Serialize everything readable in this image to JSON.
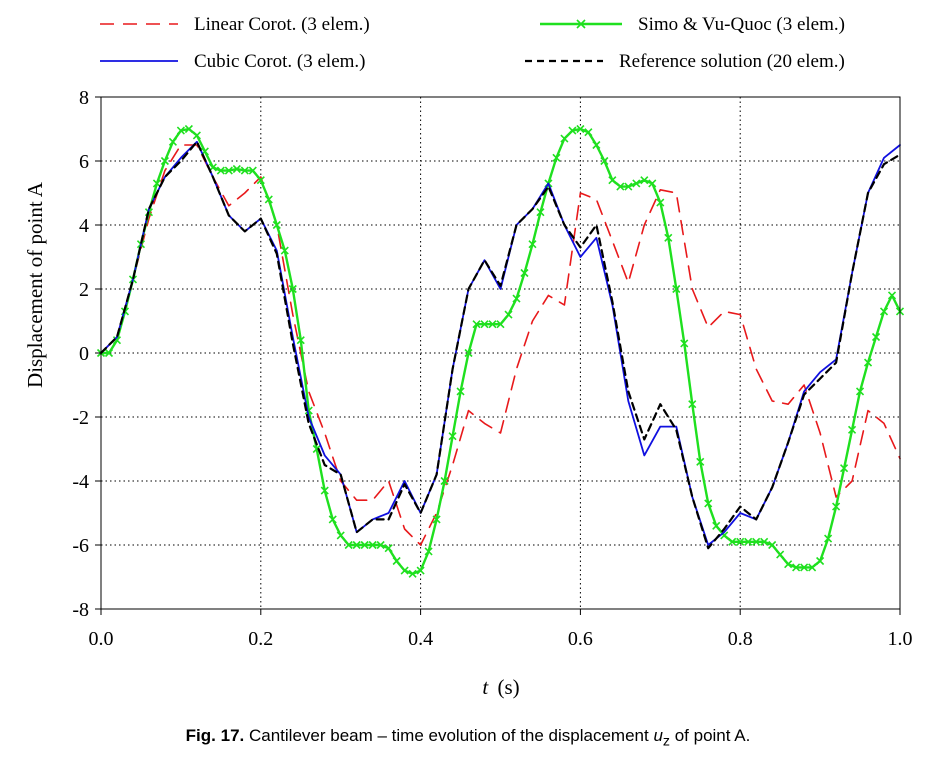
{
  "chart_data": {
    "type": "line",
    "xlabel_var": "t",
    "xlabel_unit": "(s)",
    "ylabel": "Displacement of point A",
    "xlim": [
      0,
      1
    ],
    "ylim": [
      -8,
      8
    ],
    "xticks": [
      "0.0",
      "0.2",
      "0.4",
      "0.6",
      "0.8",
      "1.0"
    ],
    "yticks": [
      "8",
      "6",
      "4",
      "2",
      "0",
      "-2",
      "-4",
      "-6",
      "-8"
    ],
    "grid": true,
    "legend_position": "top",
    "series": [
      {
        "name": "Linear Corot. (3 elem.)",
        "color": "#e8191b",
        "dash": "dashed",
        "marker": "none",
        "x": [
          0,
          0.02,
          0.04,
          0.06,
          0.08,
          0.1,
          0.12,
          0.14,
          0.16,
          0.18,
          0.2,
          0.22,
          0.24,
          0.26,
          0.28,
          0.3,
          0.32,
          0.34,
          0.36,
          0.38,
          0.4,
          0.42,
          0.44,
          0.46,
          0.48,
          0.5,
          0.52,
          0.54,
          0.56,
          0.58,
          0.6,
          0.62,
          0.64,
          0.66,
          0.68,
          0.7,
          0.72,
          0.74,
          0.76,
          0.78,
          0.8,
          0.82,
          0.84,
          0.86,
          0.88,
          0.9,
          0.92,
          0.94,
          0.96,
          0.98,
          1.0
        ],
        "y": [
          0,
          0.5,
          2.3,
          4.2,
          5.7,
          6.5,
          6.5,
          5.5,
          4.6,
          5.0,
          5.5,
          4.0,
          1.2,
          -1.2,
          -2.5,
          -4.0,
          -4.6,
          -4.6,
          -4.0,
          -5.5,
          -6.0,
          -5.0,
          -3.5,
          -1.8,
          -2.2,
          -2.5,
          -0.5,
          1.0,
          1.8,
          1.5,
          5.0,
          4.8,
          3.5,
          2.2,
          4.0,
          5.1,
          5.0,
          2.0,
          0.8,
          1.3,
          1.2,
          -0.5,
          -1.5,
          -1.6,
          -1.0,
          -2.5,
          -4.5,
          -4.0,
          -1.8,
          -2.2,
          -3.3
        ]
      },
      {
        "name": "Simo & Vu-Quoc (3 elem.)",
        "color": "#1fe01f",
        "dash": "solid",
        "marker": "x",
        "x": [
          0,
          0.01,
          0.02,
          0.03,
          0.04,
          0.05,
          0.06,
          0.07,
          0.08,
          0.09,
          0.1,
          0.11,
          0.12,
          0.13,
          0.14,
          0.15,
          0.16,
          0.17,
          0.18,
          0.19,
          0.2,
          0.21,
          0.22,
          0.23,
          0.24,
          0.25,
          0.26,
          0.27,
          0.28,
          0.29,
          0.3,
          0.31,
          0.32,
          0.33,
          0.34,
          0.35,
          0.36,
          0.37,
          0.38,
          0.39,
          0.4,
          0.41,
          0.42,
          0.43,
          0.44,
          0.45,
          0.46,
          0.47,
          0.48,
          0.49,
          0.5,
          0.51,
          0.52,
          0.53,
          0.54,
          0.55,
          0.56,
          0.57,
          0.58,
          0.59,
          0.6,
          0.61,
          0.62,
          0.63,
          0.64,
          0.65,
          0.66,
          0.67,
          0.68,
          0.69,
          0.7,
          0.71,
          0.72,
          0.73,
          0.74,
          0.75,
          0.76,
          0.77,
          0.78,
          0.79,
          0.8,
          0.81,
          0.82,
          0.83,
          0.84,
          0.85,
          0.86,
          0.87,
          0.88,
          0.89,
          0.9,
          0.91,
          0.92,
          0.93,
          0.94,
          0.95,
          0.96,
          0.97,
          0.98,
          0.99,
          1.0
        ],
        "y": [
          0,
          0.0,
          0.4,
          1.3,
          2.3,
          3.4,
          4.4,
          5.3,
          6.0,
          6.6,
          6.95,
          7.0,
          6.8,
          6.3,
          5.8,
          5.7,
          5.7,
          5.75,
          5.7,
          5.7,
          5.4,
          4.8,
          4.0,
          3.2,
          2.0,
          0.4,
          -1.8,
          -3.0,
          -4.3,
          -5.2,
          -5.7,
          -6.0,
          -6.0,
          -6.0,
          -6.0,
          -6.0,
          -6.1,
          -6.5,
          -6.8,
          -6.9,
          -6.8,
          -6.2,
          -5.2,
          -4.0,
          -2.6,
          -1.2,
          0.0,
          0.9,
          0.9,
          0.9,
          0.9,
          1.2,
          1.7,
          2.5,
          3.4,
          4.4,
          5.3,
          6.1,
          6.7,
          6.95,
          7.0,
          6.9,
          6.5,
          6.0,
          5.4,
          5.2,
          5.2,
          5.3,
          5.4,
          5.3,
          4.7,
          3.6,
          2.0,
          0.3,
          -1.6,
          -3.4,
          -4.7,
          -5.4,
          -5.7,
          -5.9,
          -5.9,
          -5.9,
          -5.9,
          -5.9,
          -6.0,
          -6.3,
          -6.6,
          -6.7,
          -6.7,
          -6.7,
          -6.5,
          -5.8,
          -4.8,
          -3.6,
          -2.4,
          -1.2,
          -0.3,
          0.5,
          1.3,
          1.8,
          1.3
        ]
      },
      {
        "name": "Cubic Corot. (3 elem.)",
        "color": "#1010e0",
        "dash": "solid",
        "marker": "none",
        "x": [
          0,
          0.02,
          0.04,
          0.06,
          0.08,
          0.1,
          0.12,
          0.14,
          0.16,
          0.18,
          0.2,
          0.22,
          0.24,
          0.26,
          0.28,
          0.3,
          0.32,
          0.34,
          0.36,
          0.38,
          0.4,
          0.42,
          0.44,
          0.46,
          0.48,
          0.5,
          0.52,
          0.54,
          0.56,
          0.58,
          0.6,
          0.62,
          0.64,
          0.66,
          0.68,
          0.7,
          0.72,
          0.74,
          0.76,
          0.78,
          0.8,
          0.82,
          0.84,
          0.86,
          0.88,
          0.9,
          0.92,
          0.94,
          0.96,
          0.98,
          1.0
        ],
        "y": [
          0,
          0.5,
          2.3,
          4.5,
          5.5,
          6.1,
          6.6,
          5.5,
          4.3,
          3.8,
          4.2,
          3.2,
          0.5,
          -2.0,
          -3.2,
          -3.8,
          -5.6,
          -5.2,
          -5.0,
          -4.0,
          -5.0,
          -3.8,
          -0.5,
          2.0,
          2.9,
          2.0,
          4.0,
          4.5,
          5.3,
          4.0,
          3.0,
          3.6,
          1.5,
          -1.5,
          -3.2,
          -2.3,
          -2.3,
          -4.5,
          -6.0,
          -5.6,
          -5.0,
          -5.2,
          -4.2,
          -2.8,
          -1.2,
          -0.6,
          -0.2,
          2.5,
          5.0,
          6.1,
          6.5
        ]
      },
      {
        "name": "Reference solution (20 elem.)",
        "color": "#000000",
        "dash": "dashed",
        "marker": "none",
        "x": [
          0,
          0.02,
          0.04,
          0.06,
          0.08,
          0.1,
          0.12,
          0.14,
          0.16,
          0.18,
          0.2,
          0.22,
          0.24,
          0.26,
          0.28,
          0.3,
          0.32,
          0.34,
          0.36,
          0.38,
          0.4,
          0.42,
          0.44,
          0.46,
          0.48,
          0.5,
          0.52,
          0.54,
          0.56,
          0.58,
          0.6,
          0.62,
          0.64,
          0.66,
          0.68,
          0.7,
          0.72,
          0.74,
          0.76,
          0.78,
          0.8,
          0.82,
          0.84,
          0.86,
          0.88,
          0.9,
          0.92,
          0.94,
          0.96,
          0.98,
          1.0
        ],
        "y": [
          0,
          0.5,
          2.3,
          4.5,
          5.5,
          6.0,
          6.6,
          5.5,
          4.3,
          3.8,
          4.2,
          3.1,
          0.3,
          -2.2,
          -3.5,
          -3.8,
          -5.6,
          -5.2,
          -5.2,
          -4.1,
          -5.0,
          -3.8,
          -0.5,
          2.0,
          2.9,
          2.1,
          4.0,
          4.5,
          5.2,
          4.0,
          3.3,
          4.0,
          1.6,
          -1.2,
          -2.7,
          -1.6,
          -2.4,
          -4.5,
          -6.1,
          -5.5,
          -4.8,
          -5.2,
          -4.2,
          -2.8,
          -1.3,
          -0.8,
          -0.3,
          2.5,
          5.0,
          5.9,
          6.2
        ]
      }
    ]
  },
  "caption": {
    "label": "Fig. 17.",
    "text_before": "Cantilever beam – time evolution of the displacement ",
    "var": "u",
    "var_sub": "z",
    "text_after": " of point A."
  }
}
